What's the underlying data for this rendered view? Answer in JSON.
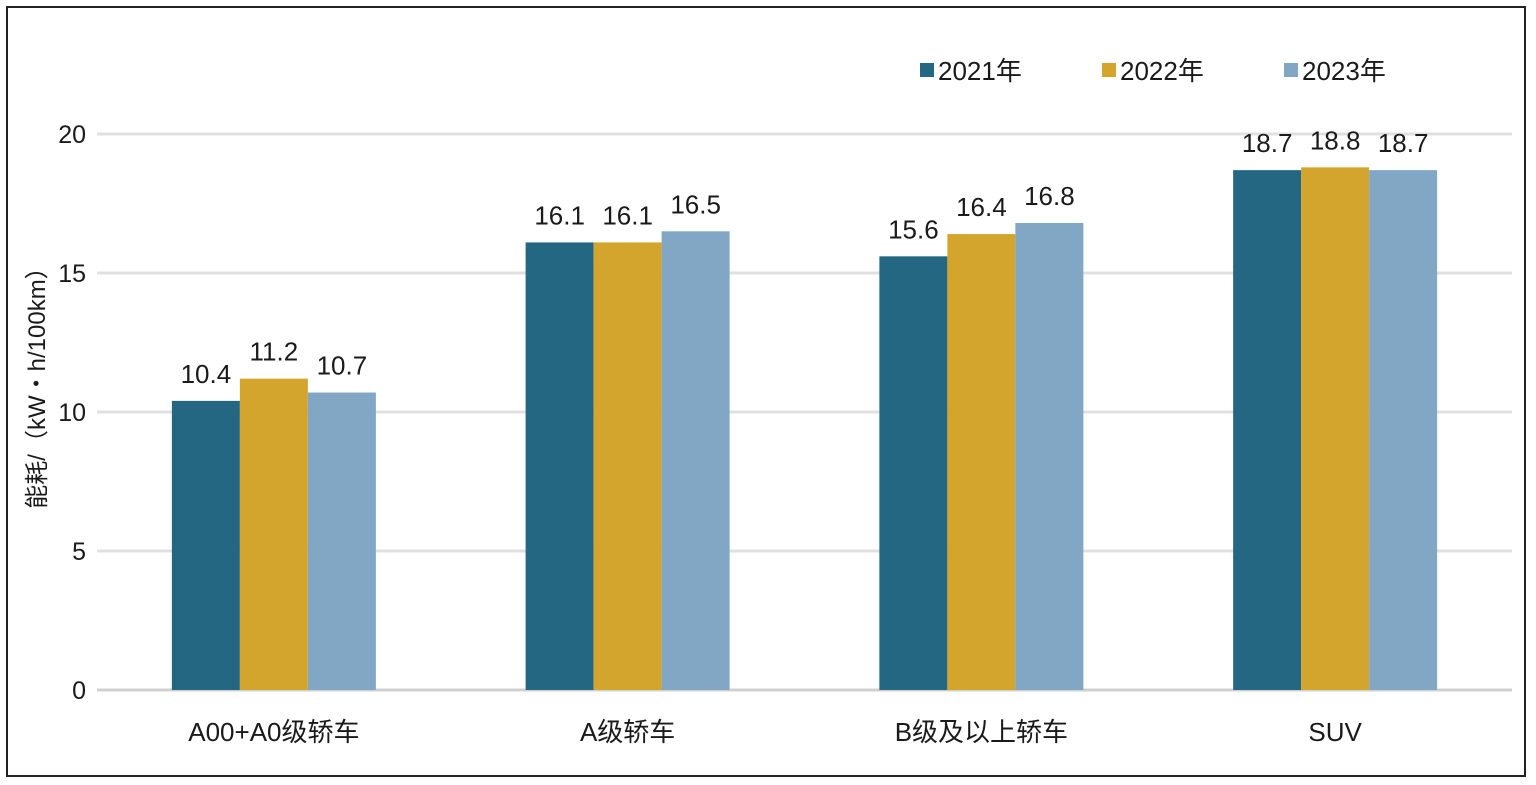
{
  "chart_data": {
    "type": "bar",
    "title": "",
    "xlabel": "",
    "ylabel": "能耗/（kW・h/100km）",
    "ylim": [
      0,
      20
    ],
    "yticks": [
      0,
      5,
      10,
      15,
      20
    ],
    "grid": true,
    "legend_position": "top-right",
    "categories": [
      "A00+A0级轿车",
      "A级轿车",
      "B级及以上轿车",
      "SUV"
    ],
    "series": [
      {
        "name": "2021年",
        "color": "#236783",
        "values": [
          10.4,
          16.1,
          15.6,
          18.7
        ],
        "labels": [
          "10.4",
          "16.1",
          "15.6",
          "18.7"
        ]
      },
      {
        "name": "2022年",
        "color": "#D3A52D",
        "values": [
          11.2,
          16.1,
          16.4,
          18.8
        ],
        "labels": [
          "11.2",
          "16.1",
          "16.4",
          "18.8"
        ]
      },
      {
        "name": "2023年",
        "color": "#82A7C4",
        "values": [
          10.7,
          16.5,
          16.8,
          18.7
        ],
        "labels": [
          "10.7",
          "16.5",
          "16.8",
          "18.7"
        ]
      }
    ]
  }
}
